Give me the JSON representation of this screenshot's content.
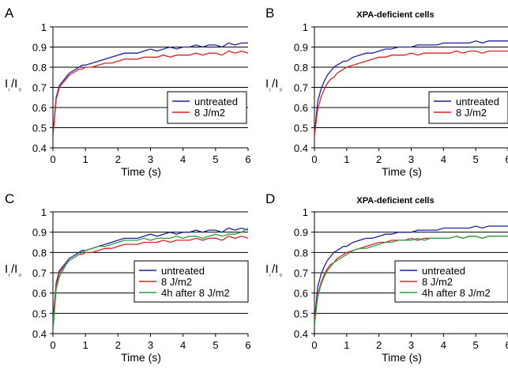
{
  "figure": {
    "panels": [
      "A",
      "B",
      "C",
      "D"
    ]
  },
  "chart_data": [
    {
      "panel_letter": "A",
      "type": "line",
      "title": "",
      "xlabel": "Time (s)",
      "ylabel": "I_t/I_0",
      "ylabel_main": "I",
      "ylabel_sub1": "t",
      "ylabel_slash": "/I",
      "ylabel_sub2": "0",
      "xlim": [
        0,
        6
      ],
      "ylim": [
        0.4,
        1
      ],
      "xticks": [
        "0",
        "1",
        "2",
        "3",
        "4",
        "5",
        "6"
      ],
      "yticks": [
        "0.4",
        "0.5",
        "0.6",
        "0.7",
        "0.8",
        "0.9",
        "1"
      ],
      "grid": "horizontal",
      "legend_position": "right",
      "series": [
        {
          "name": "untreated",
          "color": "#1f1fa0",
          "x": [
            0,
            0.1,
            0.2,
            0.3,
            0.4,
            0.5,
            0.6,
            0.7,
            0.8,
            0.9,
            1.0,
            1.2,
            1.4,
            1.6,
            1.8,
            2.0,
            2.2,
            2.4,
            2.6,
            2.8,
            3.0,
            3.2,
            3.4,
            3.6,
            3.8,
            4.0,
            4.2,
            4.4,
            4.6,
            4.8,
            5.0,
            5.2,
            5.4,
            5.6,
            5.8,
            6.0
          ],
          "y": [
            0.46,
            0.65,
            0.71,
            0.73,
            0.75,
            0.77,
            0.78,
            0.79,
            0.8,
            0.81,
            0.81,
            0.82,
            0.83,
            0.84,
            0.85,
            0.86,
            0.87,
            0.87,
            0.87,
            0.88,
            0.89,
            0.88,
            0.89,
            0.9,
            0.89,
            0.9,
            0.9,
            0.91,
            0.9,
            0.91,
            0.91,
            0.9,
            0.92,
            0.91,
            0.92,
            0.92
          ]
        },
        {
          "name": "8 J/m2",
          "color": "#e02020",
          "x": [
            0,
            0.1,
            0.2,
            0.3,
            0.4,
            0.5,
            0.6,
            0.7,
            0.8,
            0.9,
            1.0,
            1.2,
            1.4,
            1.6,
            1.8,
            2.0,
            2.2,
            2.4,
            2.6,
            2.8,
            3.0,
            3.2,
            3.4,
            3.6,
            3.8,
            4.0,
            4.2,
            4.4,
            4.6,
            4.8,
            5.0,
            5.2,
            5.4,
            5.6,
            5.8,
            6.0
          ],
          "y": [
            0.46,
            0.64,
            0.7,
            0.72,
            0.74,
            0.76,
            0.77,
            0.78,
            0.79,
            0.79,
            0.8,
            0.8,
            0.81,
            0.82,
            0.82,
            0.83,
            0.84,
            0.84,
            0.84,
            0.85,
            0.85,
            0.85,
            0.86,
            0.85,
            0.86,
            0.86,
            0.86,
            0.87,
            0.86,
            0.87,
            0.87,
            0.86,
            0.88,
            0.87,
            0.88,
            0.87
          ]
        }
      ]
    },
    {
      "panel_letter": "B",
      "type": "line",
      "title": "XPA-deficient cells",
      "xlabel": "Time (s)",
      "ylabel": "I_t/I_0",
      "ylabel_main": "I",
      "ylabel_sub1": "t",
      "ylabel_slash": "/I",
      "ylabel_sub2": "0",
      "xlim": [
        0,
        6
      ],
      "ylim": [
        0.4,
        1
      ],
      "xticks": [
        "0",
        "1",
        "2",
        "3",
        "4",
        "5",
        "6"
      ],
      "yticks": [
        "0.4",
        "0.5",
        "0.6",
        "0.7",
        "0.8",
        "0.9",
        "1"
      ],
      "grid": "horizontal",
      "legend_position": "right",
      "series": [
        {
          "name": "untreated",
          "color": "#1f1fa0",
          "x": [
            0,
            0.1,
            0.2,
            0.3,
            0.4,
            0.5,
            0.6,
            0.7,
            0.8,
            0.9,
            1.0,
            1.2,
            1.4,
            1.6,
            1.8,
            2.0,
            2.2,
            2.4,
            2.6,
            2.8,
            3.0,
            3.2,
            3.4,
            3.6,
            3.8,
            4.0,
            4.2,
            4.4,
            4.6,
            4.8,
            5.0,
            5.2,
            5.4,
            5.6,
            5.8,
            6.0
          ],
          "y": [
            0.46,
            0.63,
            0.69,
            0.73,
            0.76,
            0.78,
            0.8,
            0.81,
            0.82,
            0.83,
            0.83,
            0.85,
            0.86,
            0.87,
            0.87,
            0.88,
            0.89,
            0.89,
            0.9,
            0.9,
            0.9,
            0.91,
            0.91,
            0.91,
            0.91,
            0.92,
            0.92,
            0.92,
            0.92,
            0.92,
            0.93,
            0.92,
            0.93,
            0.93,
            0.93,
            0.93
          ]
        },
        {
          "name": "8 J/m2",
          "color": "#e02020",
          "x": [
            0,
            0.1,
            0.2,
            0.3,
            0.4,
            0.5,
            0.6,
            0.7,
            0.8,
            0.9,
            1.0,
            1.2,
            1.4,
            1.6,
            1.8,
            2.0,
            2.2,
            2.4,
            2.6,
            2.8,
            3.0,
            3.2,
            3.4,
            3.6,
            3.8,
            4.0,
            4.2,
            4.4,
            4.6,
            4.8,
            5.0,
            5.2,
            5.4,
            5.6,
            5.8,
            6.0
          ],
          "y": [
            0.46,
            0.59,
            0.65,
            0.69,
            0.72,
            0.74,
            0.75,
            0.77,
            0.78,
            0.79,
            0.8,
            0.81,
            0.82,
            0.83,
            0.84,
            0.85,
            0.85,
            0.86,
            0.86,
            0.86,
            0.87,
            0.86,
            0.87,
            0.87,
            0.87,
            0.87,
            0.87,
            0.88,
            0.87,
            0.88,
            0.88,
            0.87,
            0.88,
            0.88,
            0.88,
            0.88
          ]
        }
      ]
    },
    {
      "panel_letter": "C",
      "type": "line",
      "title": "",
      "xlabel": "Time (s)",
      "ylabel": "I_t/I_0",
      "ylabel_main": "I",
      "ylabel_sub1": "t",
      "ylabel_slash": "/I",
      "ylabel_sub2": "0",
      "xlim": [
        0,
        6
      ],
      "ylim": [
        0.4,
        1
      ],
      "xticks": [
        "0",
        "1",
        "2",
        "3",
        "4",
        "5",
        "6"
      ],
      "yticks": [
        "0.4",
        "0.5",
        "0.6",
        "0.7",
        "0.8",
        "0.9",
        "1"
      ],
      "grid": "horizontal",
      "legend_position": "right",
      "series": [
        {
          "name": "untreated",
          "color": "#1f1fa0",
          "x": [
            0,
            0.1,
            0.2,
            0.3,
            0.4,
            0.5,
            0.6,
            0.7,
            0.8,
            0.9,
            1.0,
            1.2,
            1.4,
            1.6,
            1.8,
            2.0,
            2.2,
            2.4,
            2.6,
            2.8,
            3.0,
            3.2,
            3.4,
            3.6,
            3.8,
            4.0,
            4.2,
            4.4,
            4.6,
            4.8,
            5.0,
            5.2,
            5.4,
            5.6,
            5.8,
            6.0
          ],
          "y": [
            0.46,
            0.65,
            0.71,
            0.73,
            0.75,
            0.77,
            0.78,
            0.79,
            0.8,
            0.81,
            0.81,
            0.82,
            0.83,
            0.84,
            0.85,
            0.86,
            0.87,
            0.87,
            0.87,
            0.88,
            0.89,
            0.88,
            0.89,
            0.9,
            0.89,
            0.9,
            0.9,
            0.91,
            0.9,
            0.91,
            0.91,
            0.9,
            0.92,
            0.91,
            0.92,
            0.91
          ]
        },
        {
          "name": "8 J/m2",
          "color": "#e02020",
          "x": [
            0,
            0.1,
            0.2,
            0.3,
            0.4,
            0.5,
            0.6,
            0.7,
            0.8,
            0.9,
            1.0,
            1.2,
            1.4,
            1.6,
            1.8,
            2.0,
            2.2,
            2.4,
            2.6,
            2.8,
            3.0,
            3.2,
            3.4,
            3.6,
            3.8,
            4.0,
            4.2,
            4.4,
            4.6,
            4.8,
            5.0,
            5.2,
            5.4,
            5.6,
            5.8,
            6.0
          ],
          "y": [
            0.46,
            0.64,
            0.7,
            0.72,
            0.74,
            0.76,
            0.77,
            0.78,
            0.79,
            0.79,
            0.8,
            0.8,
            0.81,
            0.82,
            0.82,
            0.83,
            0.84,
            0.84,
            0.84,
            0.85,
            0.85,
            0.85,
            0.86,
            0.85,
            0.86,
            0.86,
            0.86,
            0.87,
            0.86,
            0.87,
            0.87,
            0.86,
            0.88,
            0.87,
            0.88,
            0.87
          ]
        },
        {
          "name": "4h after 8 J/m2",
          "color": "#2aa040",
          "x": [
            0,
            0.1,
            0.2,
            0.3,
            0.4,
            0.5,
            0.6,
            0.7,
            0.8,
            0.9,
            1.0,
            1.2,
            1.4,
            1.6,
            1.8,
            2.0,
            2.2,
            2.4,
            2.6,
            2.8,
            3.0,
            3.2,
            3.4,
            3.6,
            3.8,
            4.0,
            4.2,
            4.4,
            4.6,
            4.8,
            5.0,
            5.2,
            5.4,
            5.6,
            5.8,
            6.0
          ],
          "y": [
            0.41,
            0.62,
            0.68,
            0.71,
            0.74,
            0.76,
            0.77,
            0.78,
            0.79,
            0.8,
            0.81,
            0.82,
            0.83,
            0.83,
            0.84,
            0.85,
            0.86,
            0.86,
            0.86,
            0.87,
            0.86,
            0.87,
            0.87,
            0.87,
            0.88,
            0.87,
            0.88,
            0.88,
            0.87,
            0.88,
            0.89,
            0.88,
            0.89,
            0.89,
            0.9,
            0.92
          ]
        }
      ]
    },
    {
      "panel_letter": "D",
      "type": "line",
      "title": "XPA-deficient cells",
      "xlabel": "Time (s)",
      "ylabel": "I_t/I_0",
      "ylabel_main": "I",
      "ylabel_sub1": "t",
      "ylabel_slash": "/I",
      "ylabel_sub2": "0",
      "xlim": [
        0,
        6
      ],
      "ylim": [
        0.4,
        1
      ],
      "xticks": [
        "0",
        "1",
        "2",
        "3",
        "4",
        "5",
        "6"
      ],
      "yticks": [
        "0.4",
        "0.5",
        "0.6",
        "0.7",
        "0.8",
        "0.9",
        "1"
      ],
      "grid": "horizontal",
      "legend_position": "right",
      "series": [
        {
          "name": "untreated",
          "color": "#1f1fa0",
          "x": [
            0,
            0.1,
            0.2,
            0.3,
            0.4,
            0.5,
            0.6,
            0.7,
            0.8,
            0.9,
            1.0,
            1.2,
            1.4,
            1.6,
            1.8,
            2.0,
            2.2,
            2.4,
            2.6,
            2.8,
            3.0,
            3.2,
            3.4,
            3.6,
            3.8,
            4.0,
            4.2,
            4.4,
            4.6,
            4.8,
            5.0,
            5.2,
            5.4,
            5.6,
            5.8,
            6.0
          ],
          "y": [
            0.46,
            0.63,
            0.69,
            0.73,
            0.76,
            0.78,
            0.8,
            0.81,
            0.82,
            0.83,
            0.83,
            0.85,
            0.86,
            0.87,
            0.87,
            0.88,
            0.89,
            0.89,
            0.9,
            0.9,
            0.9,
            0.91,
            0.91,
            0.91,
            0.91,
            0.92,
            0.92,
            0.92,
            0.92,
            0.92,
            0.93,
            0.92,
            0.93,
            0.93,
            0.93,
            0.93
          ]
        },
        {
          "name": "8 J/m2",
          "color": "#e02020",
          "x": [
            0,
            0.1,
            0.2,
            0.3,
            0.4,
            0.5,
            0.6,
            0.7,
            0.8,
            0.9,
            1.0,
            1.2,
            1.4,
            1.6,
            1.8,
            2.0,
            2.2,
            2.4,
            2.6,
            2.8,
            3.0,
            3.2,
            3.4,
            3.6,
            3.8,
            4.0,
            4.2,
            4.4,
            4.6,
            4.8,
            5.0,
            5.2,
            5.4,
            5.6,
            5.8,
            6.0
          ],
          "y": [
            0.46,
            0.59,
            0.65,
            0.69,
            0.72,
            0.74,
            0.75,
            0.77,
            0.78,
            0.79,
            0.8,
            0.81,
            0.82,
            0.83,
            0.84,
            0.85,
            0.85,
            0.86,
            0.86,
            0.86,
            0.87,
            0.86,
            0.87,
            0.87,
            0.87,
            0.87,
            0.87,
            0.88,
            0.87,
            0.88,
            0.88,
            0.87,
            0.88,
            0.88,
            0.88,
            0.88
          ]
        },
        {
          "name": "4h after 8 J/m2",
          "color": "#2aa040",
          "x": [
            0,
            0.1,
            0.2,
            0.3,
            0.4,
            0.5,
            0.6,
            0.7,
            0.8,
            0.9,
            1.0,
            1.2,
            1.4,
            1.6,
            1.8,
            2.0,
            2.2,
            2.4,
            2.6,
            2.8,
            3.0,
            3.2,
            3.4,
            3.6,
            3.8,
            4.0,
            4.2,
            4.4,
            4.6,
            4.8,
            5.0,
            5.2,
            5.4,
            5.6,
            5.8,
            6.0
          ],
          "y": [
            0.44,
            0.58,
            0.64,
            0.68,
            0.71,
            0.73,
            0.75,
            0.76,
            0.77,
            0.78,
            0.79,
            0.81,
            0.82,
            0.82,
            0.83,
            0.84,
            0.85,
            0.85,
            0.86,
            0.86,
            0.86,
            0.87,
            0.86,
            0.87,
            0.87,
            0.87,
            0.87,
            0.88,
            0.87,
            0.88,
            0.88,
            0.87,
            0.88,
            0.88,
            0.88,
            0.88
          ]
        }
      ]
    }
  ]
}
